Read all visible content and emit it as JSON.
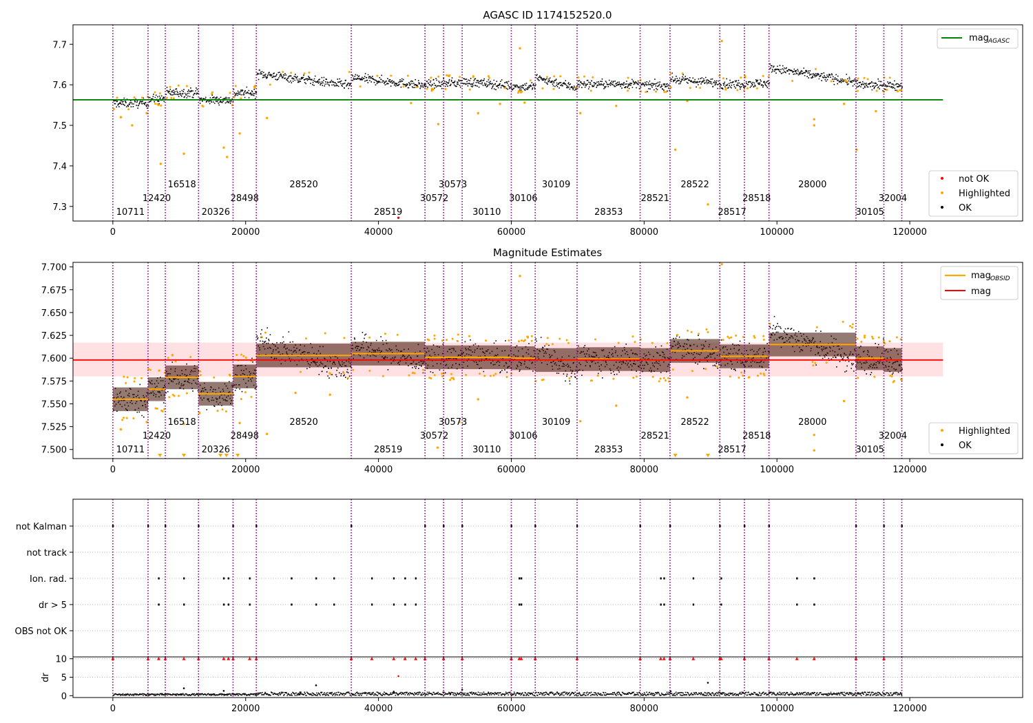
{
  "figure": {
    "title": "AGASC ID 1174152520.0"
  },
  "colors": {
    "ok": "#000000",
    "highlighted": "#ffa500",
    "not_ok": "#ff0000",
    "mag_agasc": "#008000",
    "mag": "#ff0000",
    "mag_obsid": "#ffa500",
    "obs_line": "#800080",
    "band": "#ffe0e3"
  },
  "obsids": [
    {
      "id": "10711",
      "start": 0
    },
    {
      "id": "12420",
      "start": 5300
    },
    {
      "id": "16518",
      "start": 7900
    },
    {
      "id": "20326",
      "start": 12900
    },
    {
      "id": "28498",
      "start": 18100
    },
    {
      "id": "28520",
      "start": 21600
    },
    {
      "id": "28519",
      "start": 35900
    },
    {
      "id": "30572",
      "start": 47000
    },
    {
      "id": "30573",
      "start": 49800
    },
    {
      "id": "30110",
      "start": 52600
    },
    {
      "id": "30106",
      "start": 60000
    },
    {
      "id": "30109",
      "start": 63600
    },
    {
      "id": "28353",
      "start": 69900
    },
    {
      "id": "28521",
      "start": 79400
    },
    {
      "id": "28522",
      "start": 83900
    },
    {
      "id": "28517",
      "start": 91400
    },
    {
      "id": "28518",
      "start": 95100
    },
    {
      "id": "28000",
      "start": 98800
    },
    {
      "id": "30105",
      "start": 111900
    },
    {
      "id": "32004",
      "start": 116100
    }
  ],
  "obs_end": 118800,
  "chart_data": [
    {
      "type": "scatter",
      "title": "AGASC ID 1174152520.0",
      "xlim": [
        -6000,
        137000
      ],
      "ylim": [
        7.264,
        7.748
      ],
      "xticks": [
        "0",
        "20000",
        "40000",
        "60000",
        "80000",
        "100000",
        "120000"
      ],
      "xtick_values": [
        0,
        20000,
        40000,
        60000,
        80000,
        100000,
        120000
      ],
      "yticks": [
        "7.3",
        "7.4",
        "7.5",
        "7.6",
        "7.7"
      ],
      "ytick_values": [
        7.3,
        7.4,
        7.5,
        7.6,
        7.7
      ],
      "mag_agasc": 7.563,
      "mag_agasc_xrange": [
        -6000,
        125000
      ],
      "legend_lines": [
        {
          "label": "mag",
          "sub": "AGASC"
        }
      ],
      "legend_points": [
        "not OK",
        "Highlighted",
        "OK"
      ],
      "segment_means": [
        7.556,
        7.566,
        7.582,
        7.564,
        7.581,
        7.614,
        7.609,
        7.603,
        7.606,
        7.604,
        7.597,
        7.606,
        7.603,
        7.599,
        7.61,
        7.603,
        7.605,
        7.625,
        7.6,
        7.6
      ],
      "outliers_highlighted": [
        [
          1200,
          7.52
        ],
        [
          2900,
          7.5
        ],
        [
          5100,
          7.53
        ],
        [
          7200,
          7.405
        ],
        [
          10700,
          7.43
        ],
        [
          16700,
          7.445
        ],
        [
          17200,
          7.422
        ],
        [
          19100,
          7.48
        ],
        [
          23200,
          7.518
        ],
        [
          44900,
          7.555
        ],
        [
          49000,
          7.503
        ],
        [
          55000,
          7.53
        ],
        [
          58300,
          7.553
        ],
        [
          61300,
          7.69
        ],
        [
          62000,
          7.556
        ],
        [
          70400,
          7.53
        ],
        [
          75800,
          7.548
        ],
        [
          84700,
          7.44
        ],
        [
          86500,
          7.56
        ],
        [
          89600,
          7.305
        ],
        [
          91700,
          7.708
        ],
        [
          105600,
          7.515
        ],
        [
          105600,
          7.5
        ],
        [
          110100,
          7.553
        ],
        [
          112000,
          7.44
        ],
        [
          114900,
          7.535
        ]
      ],
      "outliers_not_ok": [
        [
          43000,
          7.272
        ]
      ]
    },
    {
      "type": "scatter",
      "title": "Magnitude Estimates",
      "xlim": [
        -6000,
        137000
      ],
      "ylim": [
        7.49,
        7.705
      ],
      "xticks": [
        "0",
        "20000",
        "40000",
        "60000",
        "80000",
        "100000",
        "120000"
      ],
      "xtick_values": [
        0,
        20000,
        40000,
        60000,
        80000,
        100000,
        120000
      ],
      "yticks": [
        "7.500",
        "7.525",
        "7.550",
        "7.575",
        "7.600",
        "7.625",
        "7.650",
        "7.675",
        "7.700"
      ],
      "ytick_values": [
        7.5,
        7.525,
        7.55,
        7.575,
        7.6,
        7.625,
        7.65,
        7.675,
        7.7
      ],
      "mag": 7.598,
      "mag_band": [
        7.58,
        7.617
      ],
      "mag_xrange": [
        -6000,
        125000
      ],
      "legend_lines": [
        {
          "label": "mag",
          "sub": "OBSID"
        },
        {
          "label": "mag",
          "sub": ""
        }
      ],
      "legend_points": [
        "Highlighted",
        "OK"
      ],
      "segment_means": [
        7.555,
        7.566,
        7.579,
        7.561,
        7.58,
        7.603,
        7.605,
        7.601,
        7.601,
        7.601,
        7.6,
        7.598,
        7.599,
        7.598,
        7.608,
        7.602,
        7.602,
        7.615,
        7.6,
        7.598
      ],
      "outliers_highlighted": [
        [
          1200,
          7.522
        ],
        [
          5100,
          7.53
        ],
        [
          10700,
          7.528
        ],
        [
          19100,
          7.529
        ],
        [
          23200,
          7.517
        ],
        [
          27500,
          7.562
        ],
        [
          32700,
          7.56
        ],
        [
          48900,
          7.502
        ],
        [
          52200,
          7.53
        ],
        [
          55000,
          7.555
        ],
        [
          61300,
          7.69
        ],
        [
          70400,
          7.531
        ],
        [
          75800,
          7.548
        ],
        [
          86500,
          7.557
        ],
        [
          91700,
          7.703
        ],
        [
          105600,
          7.516
        ],
        [
          105600,
          7.499
        ],
        [
          110100,
          7.553
        ]
      ]
    },
    {
      "type": "scatter",
      "title": "",
      "xlim": [
        -6000,
        137000
      ],
      "categories": [
        "not Kalman",
        "not track",
        "Ion. rad.",
        "dr > 5",
        "OBS not OK"
      ],
      "flag_not_kalman": [
        0,
        5300,
        7900,
        12900,
        18100,
        21600,
        35900,
        47000,
        49800,
        52600,
        60000,
        63600,
        69900,
        79400,
        83900,
        91400,
        95100,
        98800,
        111900,
        116100,
        118800
      ],
      "flag_not_track": [],
      "flag_ion_rad": [
        6900,
        10700,
        16700,
        17400,
        20600,
        26900,
        30600,
        33300,
        39000,
        42300,
        44000,
        45600,
        61200,
        61500,
        82500,
        83000,
        87400,
        91600,
        103000,
        105600
      ],
      "flag_dr5": [
        6900,
        10700,
        16700,
        17400,
        20600,
        26900,
        30600,
        33300,
        39000,
        42300,
        44000,
        45600,
        61200,
        61500,
        82500,
        83000,
        87400,
        91600,
        103000,
        105600
      ],
      "flag_obs_not_ok": []
    },
    {
      "type": "scatter",
      "title": "",
      "ylabel": "dr",
      "xlim": [
        -6000,
        137000
      ],
      "ylim": [
        -0.5,
        10.5
      ],
      "xticks": [
        "0",
        "20000",
        "40000",
        "60000",
        "80000",
        "100000",
        "120000"
      ],
      "xtick_values": [
        0,
        20000,
        40000,
        60000,
        80000,
        100000,
        120000
      ],
      "yticks": [
        "0",
        "5",
        "10"
      ],
      "ytick_values": [
        0,
        5,
        10
      ],
      "dr_capped_at": 10,
      "dr_outliers": [
        [
          10700,
          2.0
        ],
        [
          16700,
          1.3
        ],
        [
          28200,
          0.9
        ],
        [
          30600,
          2.8
        ],
        [
          42300,
          1.1
        ],
        [
          50800,
          0.6
        ],
        [
          52600,
          1.6
        ],
        [
          84000,
          1.2
        ],
        [
          89600,
          3.5
        ]
      ],
      "dr_not_ok": [
        [
          43000,
          5.3
        ]
      ],
      "dr_capped_points": [
        0,
        5300,
        6900,
        7900,
        10700,
        12900,
        16700,
        17400,
        18100,
        20600,
        21600,
        35900,
        39000,
        42300,
        44000,
        45600,
        47000,
        49800,
        52600,
        60000,
        61200,
        61500,
        63600,
        69900,
        79400,
        82500,
        83000,
        83900,
        87400,
        91400,
        91600,
        95100,
        98800,
        103000,
        105600,
        111900,
        116100
      ]
    }
  ]
}
